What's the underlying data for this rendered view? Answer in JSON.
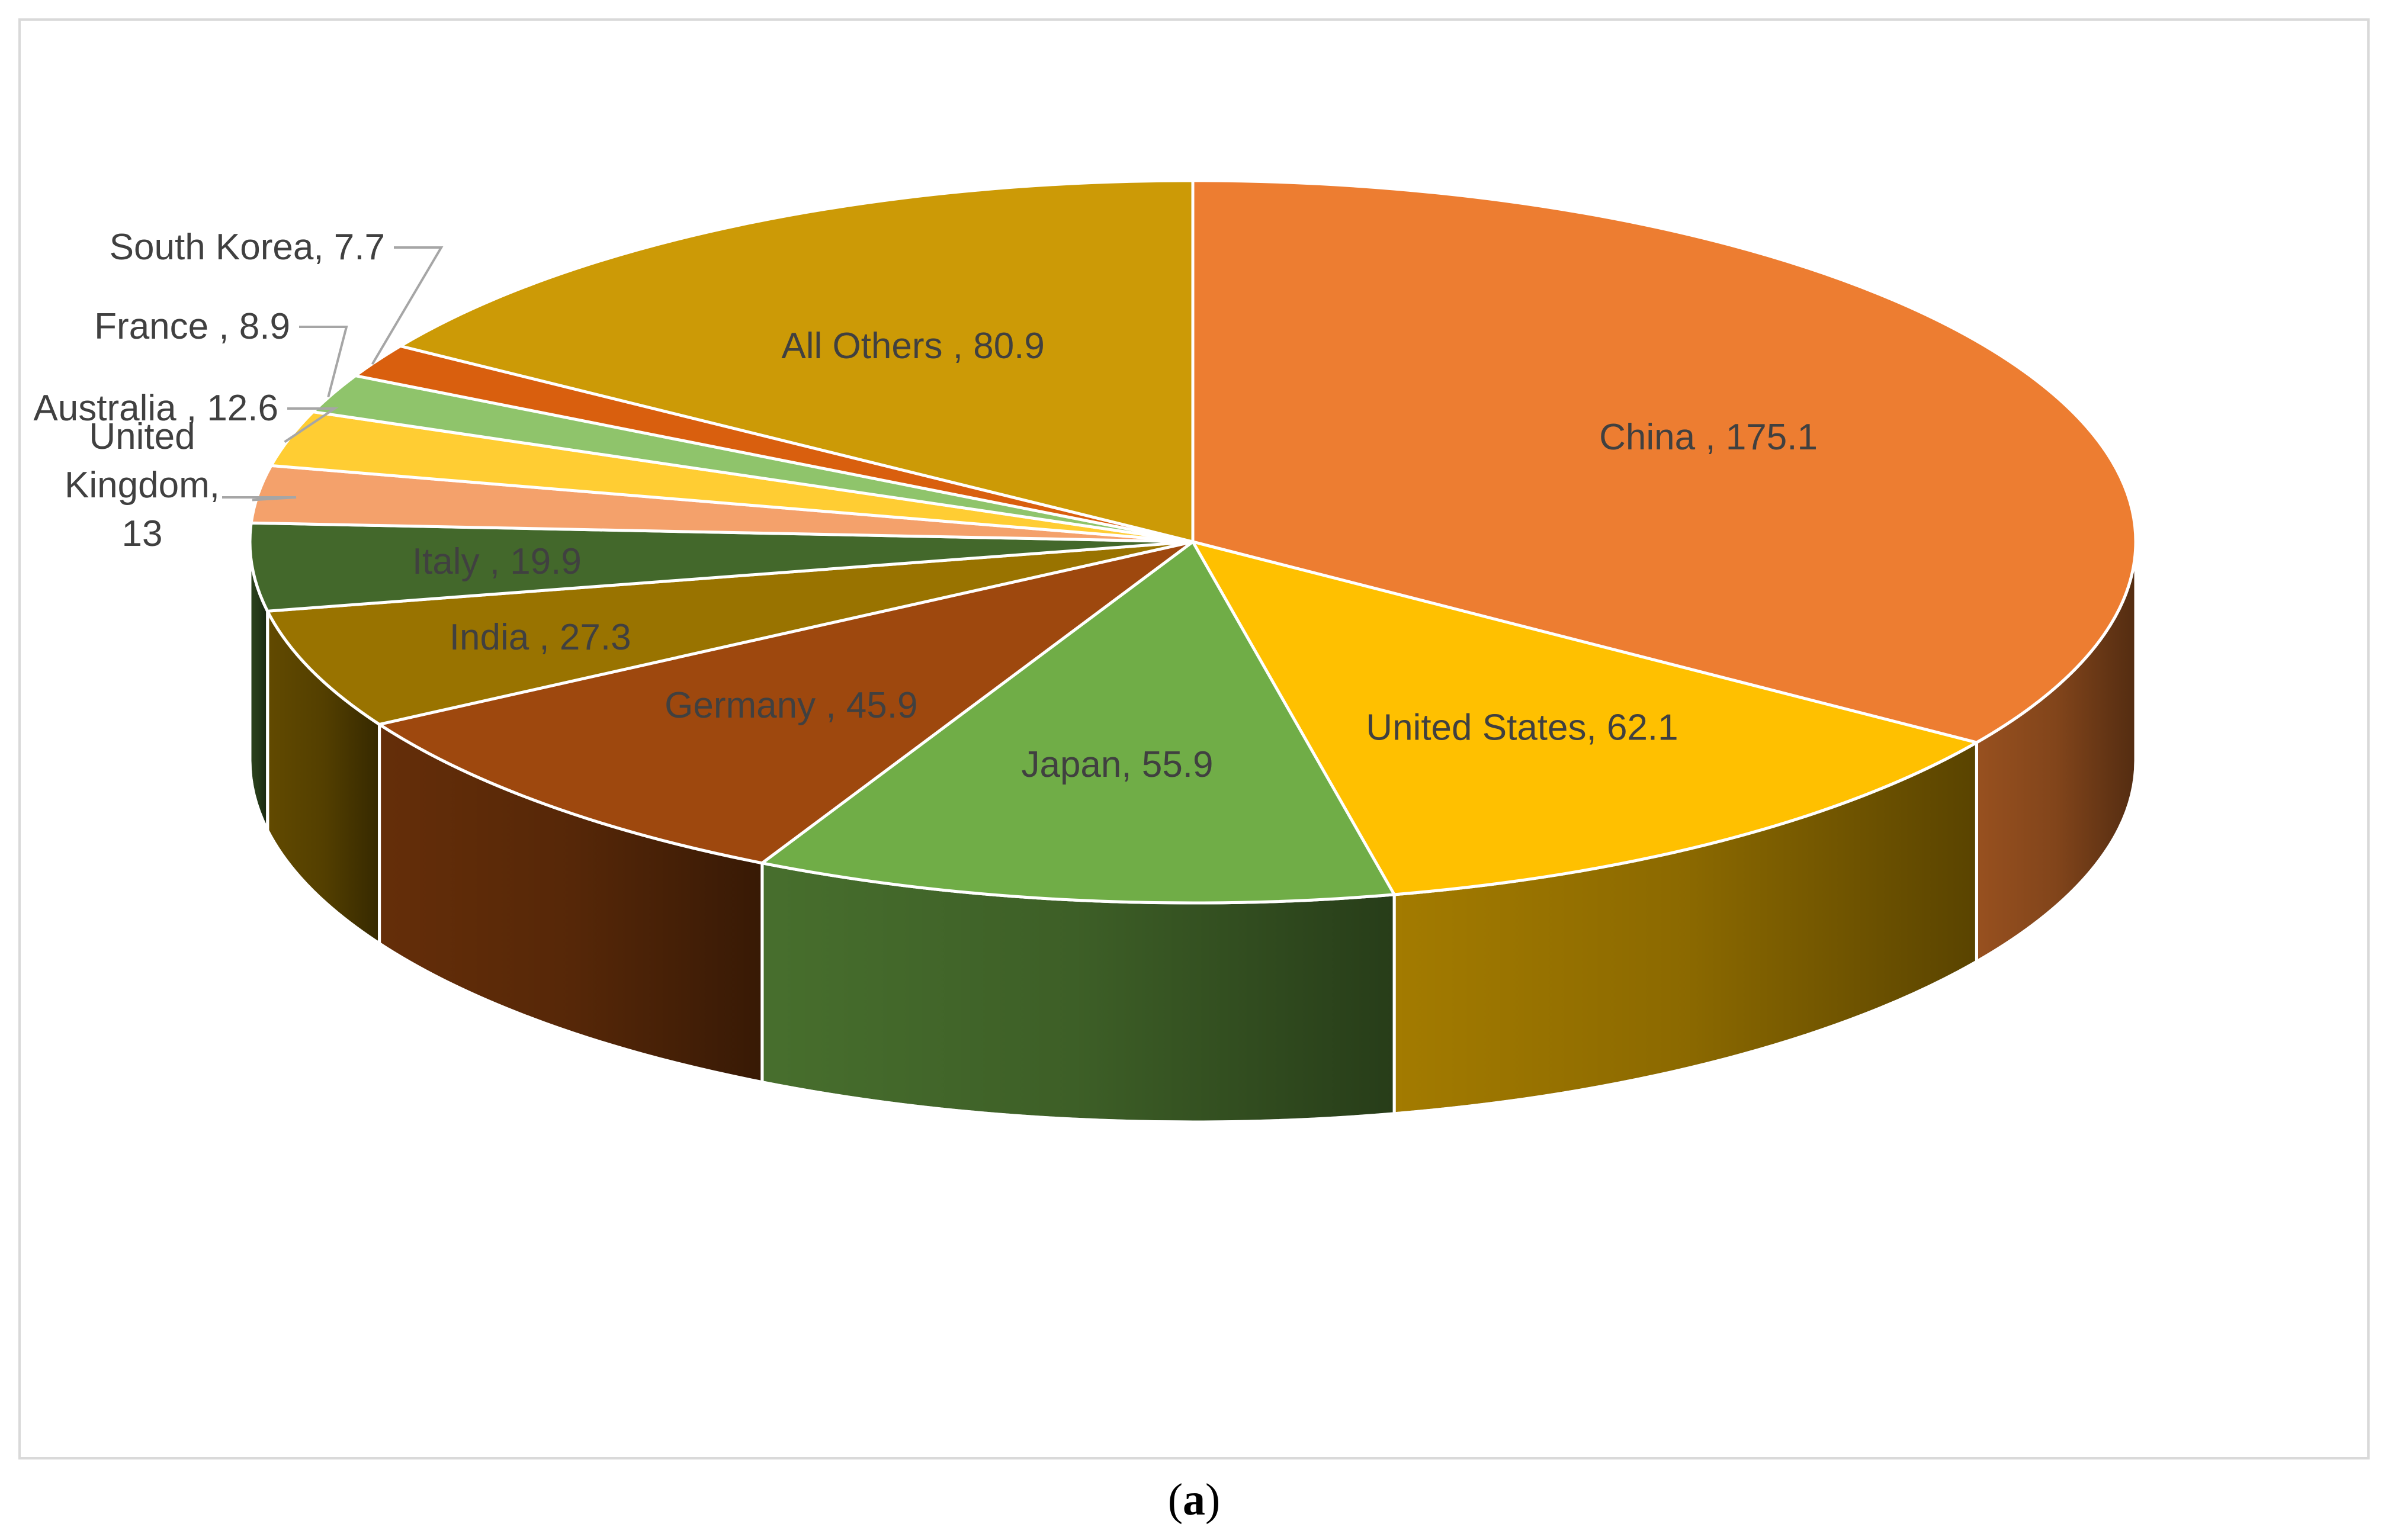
{
  "caption": {
    "open": "(",
    "letter": "a",
    "close": ")"
  },
  "chart_data": {
    "type": "pie",
    "style": "3d",
    "title": "",
    "start": "12 o'clock",
    "direction": "clockwise",
    "slices": [
      {
        "name": "China",
        "value": 175.1,
        "color": "#ED7D31",
        "label": "China , 175.1",
        "label_lines": [
          "China , 175.1"
        ]
      },
      {
        "name": "United States",
        "value": 62.1,
        "color": "#FFC000",
        "label": "United States, 62.1",
        "label_lines": [
          "United States, 62.1"
        ]
      },
      {
        "name": "Japan",
        "value": 55.9,
        "color": "#70AD47",
        "label": "Japan, 55.9",
        "label_lines": [
          "Japan, 55.9"
        ]
      },
      {
        "name": "Germany",
        "value": 45.9,
        "color": "#9E480E",
        "label": "Germany , 45.9",
        "label_lines": [
          "Germany , 45.9"
        ]
      },
      {
        "name": "India",
        "value": 27.3,
        "color": "#997300",
        "label": "India , 27.3",
        "label_lines": [
          "India , 27.3"
        ]
      },
      {
        "name": "Italy",
        "value": 19.9,
        "color": "#43682B",
        "label": "Italy , 19.9",
        "label_lines": [
          "Italy , 19.9"
        ]
      },
      {
        "name": "United Kingdom",
        "value": 13,
        "color": "#F4A16B",
        "label": "United Kingdom, 13",
        "label_lines": [
          "United",
          "Kingdom,",
          "13"
        ]
      },
      {
        "name": "Australia",
        "value": 12.6,
        "color": "#FFCD33",
        "label": "Australia , 12.6",
        "label_lines": [
          "Australia , 12.6"
        ]
      },
      {
        "name": "France",
        "value": 8.9,
        "color": "#8FC46B",
        "label": "France , 8.9",
        "label_lines": [
          "France , 8.9"
        ]
      },
      {
        "name": "South Korea",
        "value": 7.7,
        "color": "#D95F0E",
        "label": "South Korea, 7.7",
        "label_lines": [
          "South Korea, 7.7"
        ]
      },
      {
        "name": "All Others",
        "value": 80.9,
        "color": "#CC9A06",
        "label": "All Others , 80.9",
        "label_lines": [
          "All Others , 80.9"
        ]
      }
    ]
  }
}
